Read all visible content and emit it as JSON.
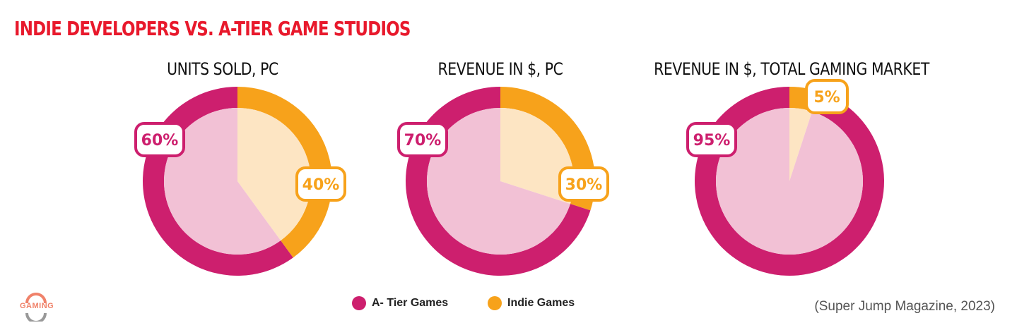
{
  "title": "INDIE DEVELOPERS VS. A-TIER GAME STUDIOS",
  "colors": {
    "a_tier": "#cd1f6e",
    "a_tier_light": "#f2c1d5",
    "indie": "#f7a21b",
    "indie_light": "#fde5c3",
    "title": "#e8192c"
  },
  "chart_data": [
    {
      "type": "pie",
      "title": "UNITS SOLD, PC",
      "labels": [
        "A- Tier Games",
        "Indie Games"
      ],
      "values": [
        60,
        40
      ],
      "value_labels": [
        "60%",
        "40%"
      ]
    },
    {
      "type": "pie",
      "title": "REVENUE IN $, PC",
      "labels": [
        "A- Tier Games",
        "Indie Games"
      ],
      "values": [
        70,
        30
      ],
      "value_labels": [
        "70%",
        "30%"
      ]
    },
    {
      "type": "pie",
      "title": "REVENUE IN $, TOTAL GAMING MARKET",
      "labels": [
        "A- Tier Games",
        "Indie Games"
      ],
      "values": [
        95,
        5
      ],
      "value_labels": [
        "95%",
        "5%"
      ]
    }
  ],
  "legend": {
    "a_tier": "A- Tier Games",
    "indie": "Indie Games"
  },
  "source": "(Super Jump Magazine, 2023)",
  "logo_text": "GAMING"
}
